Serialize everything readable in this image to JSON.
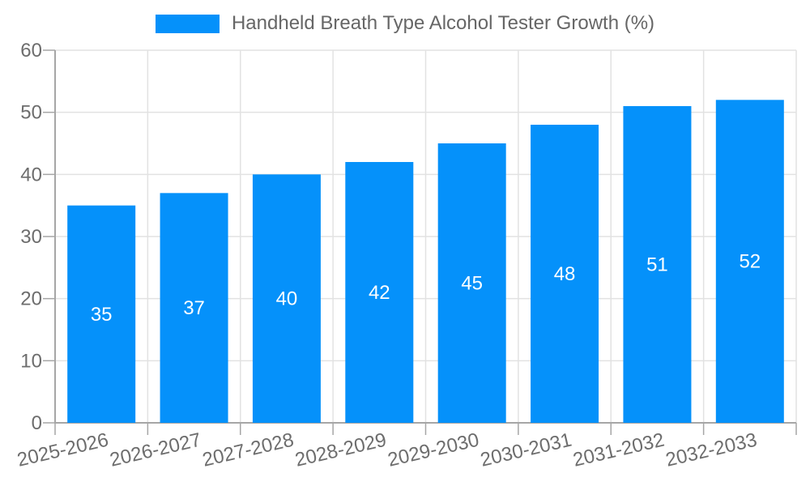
{
  "legend": {
    "swatch_icon": "series-color-swatch"
  },
  "chart_data": {
    "type": "bar",
    "title": "Handheld Breath Type Alcohol Tester Growth (%)",
    "series_name": "Handheld Breath Type Alcohol Tester Growth (%)",
    "categories": [
      "2025-2026",
      "2026-2027",
      "2027-2028",
      "2028-2029",
      "2029-2030",
      "2030-2031",
      "2031-2032",
      "2032-2033"
    ],
    "values": [
      35,
      37,
      40,
      42,
      45,
      48,
      51,
      52
    ],
    "xlabel": "",
    "ylabel": "",
    "ylim": [
      0,
      60
    ],
    "ytick_interval": 10,
    "yticks": [
      0,
      10,
      20,
      30,
      40,
      50,
      60
    ],
    "grid": true,
    "legend_position": "top-center",
    "bar_label_position": "inside-center",
    "colors": {
      "bar": "#0591fa",
      "bar_label": "#ffffff",
      "axis_text": "#6d6d6d",
      "legend_text": "#666666",
      "grid_line": "#e2e2e2",
      "axis_line": "#a6a6a6",
      "background": "#ffffff"
    }
  }
}
